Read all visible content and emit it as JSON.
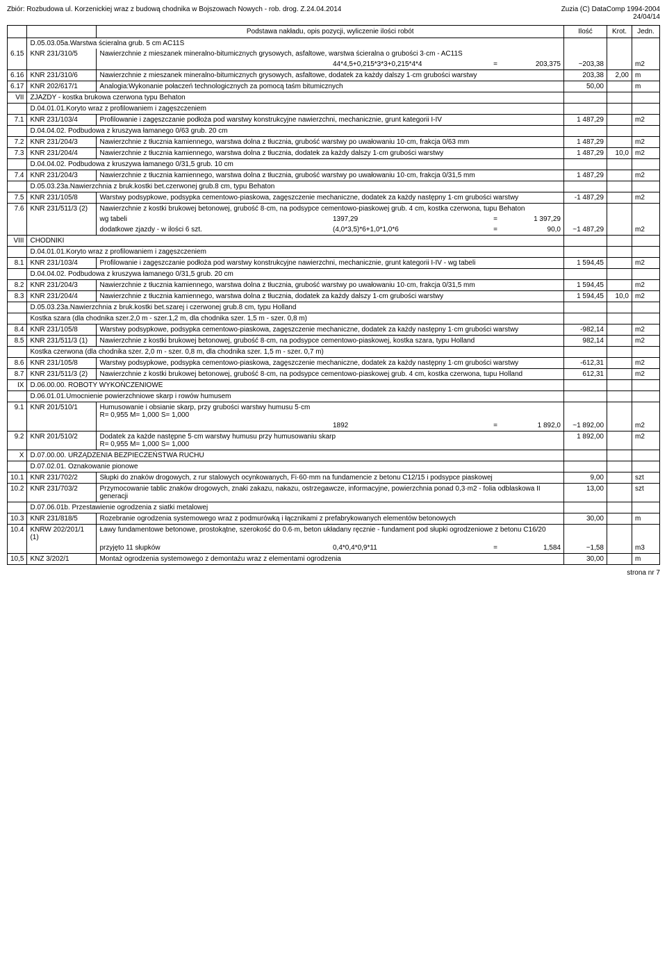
{
  "header": {
    "left": "Zbiór: Rozbudowa ul. Korzenickiej wraz z budową chodnika  w Bojszowach Nowych - rob. drog. Z.24.04.2014",
    "right1": "Zuzia (C) DataComp 1994-2004",
    "right2": "24/04/14"
  },
  "columns": {
    "desc": "Podstawa nakładu, opis pozycji, wyliczenie ilości robót",
    "ilosc": "Ilość",
    "krot": "Krot.",
    "jedn": "Jedn."
  },
  "rows": [
    {
      "type": "sect",
      "lp": "",
      "knr": "",
      "desc": "D.05.03.05a.Warstwa ścieralna grub. 5 cm AC11S"
    },
    {
      "type": "item",
      "lp": "6.15",
      "knr": "KNR 231/310/5",
      "desc": "Nawierzchnie z mieszanek mineralno-bitumicznych grysowych, asfaltowe, warstwa ścieralna o grubości 3·cm - AC11S"
    },
    {
      "type": "calc",
      "label": "",
      "expr": "44*4,5+0,215*3*3+0,215*4*4",
      "eq": "=",
      "val": "203,375",
      "ilosc": "~203,38",
      "krot": "",
      "jedn": "m2",
      "border": true
    },
    {
      "type": "item",
      "lp": "6.16",
      "knr": "KNR 231/310/6",
      "desc": "Nawierzchnie z mieszanek mineralno-bitumicznych grysowych, asfaltowe, dodatek za każdy dalszy 1·cm grubości warstwy",
      "ilosc": "203,38",
      "krot": "2,00",
      "jedn": "m",
      "border": true
    },
    {
      "type": "item",
      "lp": "6.17",
      "knr": "KNR 202/617/1",
      "desc": "Analogia:Wykonanie połaczeń technologicznych za pomocą taśm bitumicznych",
      "ilosc": "50,00",
      "krot": "",
      "jedn": "m",
      "border": true
    },
    {
      "type": "chap",
      "lp": "VII",
      "desc": "ZJAZDY - kostka brukowa czerwona typu Behaton",
      "border": true
    },
    {
      "type": "sect",
      "desc": "D.04.01.01.Koryto wraz z profilowaniem i zagęszczeniem",
      "border": true
    },
    {
      "type": "item",
      "lp": "7.1",
      "knr": "KNR 231/103/4",
      "desc": "Profilowanie i zagęszczanie podłoża pod warstwy konstrukcyjne nawierzchni, mechanicznie, grunt kategorii I-IV",
      "ilosc": "1 487,29",
      "krot": "",
      "jedn": "m2",
      "border": true
    },
    {
      "type": "sect",
      "desc": "D.04.04.02. Podbudowa z kruszywa łamanego 0/63 grub. 20 cm",
      "border": true
    },
    {
      "type": "item",
      "lp": "7.2",
      "knr": "KNR 231/204/3",
      "desc": "Nawierzchnie z tłucznia kamiennego, warstwa dolna z tłucznia, grubość warstwy po uwałowaniu 10·cm, frakcja 0/63 mm",
      "ilosc": "1 487,29",
      "krot": "",
      "jedn": "m2",
      "border": true
    },
    {
      "type": "item",
      "lp": "7.3",
      "knr": "KNR 231/204/4",
      "desc": "Nawierzchnie z tłucznia kamiennego, warstwa dolna z tłucznia, dodatek za każdy dalszy 1·cm grubości warstwy",
      "ilosc": "1 487,29",
      "krot": "10,0",
      "jedn": "m2",
      "border": true
    },
    {
      "type": "sect",
      "desc": "D.04.04.02. Podbudowa z kruszywa łamanego 0/31,5 grub. 10 cm",
      "border": true
    },
    {
      "type": "item",
      "lp": "7.4",
      "knr": "KNR 231/204/3",
      "desc": "Nawierzchnie z tłucznia kamiennego, warstwa dolna z tłucznia, grubość warstwy po uwałowaniu 10·cm, frakcja 0/31,5 mm",
      "ilosc": "1 487,29",
      "krot": "",
      "jedn": "m2",
      "border": true
    },
    {
      "type": "sect",
      "desc": "D.05.03.23a.Nawierzchnia z bruk.kostki bet.czerwonej grub.8 cm, typu Behaton",
      "border": true
    },
    {
      "type": "item",
      "lp": "7.5",
      "knr": "KNR 231/105/8",
      "desc": "Warstwy podsypkowe, podsypka cementowo-piaskowa, zagęszczenie mechaniczne, dodatek za każdy następny 1·cm grubości warstwy",
      "ilosc": "-1 487,29",
      "krot": "",
      "jedn": "m2",
      "border": true
    },
    {
      "type": "item",
      "lp": "7.6",
      "knr": "KNR 231/511/3 (2)",
      "desc": "Nawierzchnie z kostki brukowej betonowej, grubość 8·cm, na podsypce cementowo-piaskowej grub. 4 cm, kostka czerwona, tupu Behaton"
    },
    {
      "type": "calc",
      "label": "wg tabeli",
      "expr": "1397,29",
      "eq": "=",
      "val": "1 397,29",
      "ilosc": "",
      "krot": "",
      "jedn": ""
    },
    {
      "type": "calc",
      "label": "dodatkowe zjazdy - w ilości 6 szt.",
      "expr": "(4,0*3,5)*6+1,0*1,0*6",
      "eq": "=",
      "val": "90,0",
      "ilosc": "~1 487,29",
      "krot": "",
      "jedn": "m2",
      "border": true
    },
    {
      "type": "chap",
      "lp": "VIII",
      "desc": "CHODNIKI",
      "border": true
    },
    {
      "type": "sect",
      "desc": "D.04.01.01.Koryto wraz z profilowaniem i zagęszczeniem",
      "border": true
    },
    {
      "type": "item",
      "lp": "8.1",
      "knr": "KNR 231/103/4",
      "desc": "Profilowanie i zagęszczanie podłoża pod warstwy konstrukcyjne nawierzchni, mechanicznie, grunt kategorii I-IV - wg tabeli",
      "ilosc": "1 594,45",
      "krot": "",
      "jedn": "m2",
      "border": true
    },
    {
      "type": "sect",
      "desc": "D.04.04.02. Podbudowa z kruszywa łamanego 0/31,5 grub. 20 cm",
      "border": true
    },
    {
      "type": "item",
      "lp": "8.2",
      "knr": "KNR 231/204/3",
      "desc": "Nawierzchnie z tłucznia kamiennego, warstwa dolna z tłucznia, grubość warstwy po uwałowaniu 10·cm, frakcja 0/31,5 mm",
      "ilosc": "1 594,45",
      "krot": "",
      "jedn": "m2",
      "border": true
    },
    {
      "type": "item",
      "lp": "8.3",
      "knr": "KNR 231/204/4",
      "desc": "Nawierzchnie z tłucznia kamiennego, warstwa dolna z tłucznia, dodatek za każdy dalszy 1·cm grubości warstwy",
      "ilosc": "1 594,45",
      "krot": "10,0",
      "jedn": "m2",
      "border": true
    },
    {
      "type": "sect",
      "desc": "D.05.03.23a.Nawierzchnia z bruk.kostki bet.szarej i czerwonej  grub.8 cm, typu Holland",
      "border": true
    },
    {
      "type": "sect",
      "desc": "Kostka szara (dla chodnika szer.2,0 m  - szer.1,2 m, dla chodnika szer. 1,5 m  - szer. 0,8 m)",
      "border": true
    },
    {
      "type": "item",
      "lp": "8.4",
      "knr": "KNR 231/105/8",
      "desc": "Warstwy podsypkowe, podsypka cementowo-piaskowa, zagęszczenie mechaniczne, dodatek za każdy następny 1·cm grubości warstwy",
      "ilosc": "-982,14",
      "krot": "",
      "jedn": "m2",
      "border": true
    },
    {
      "type": "item",
      "lp": "8.5",
      "knr": "KNR 231/511/3 (1)",
      "desc": "Nawierzchnie z kostki brukowej betonowej, grubość 8·cm, na podsypce cementowo-piaskowej, kostka szara, typu Holland",
      "ilosc": "982,14",
      "krot": "",
      "jedn": "m2",
      "border": true
    },
    {
      "type": "sect",
      "desc": "Kostka czerwona (dla chodnika szer. 2,0 m - szer. 0,8 m, dla chodnika szer. 1,5 m - szer. 0,7 m)",
      "border": true
    },
    {
      "type": "item",
      "lp": "8.6",
      "knr": "KNR 231/105/8",
      "desc": "Warstwy podsypkowe, podsypka cementowo-piaskowa, zagęszczenie mechaniczne, dodatek za każdy następny 1·cm grubości warstwy",
      "ilosc": "-612,31",
      "krot": "",
      "jedn": "m2",
      "border": true
    },
    {
      "type": "item",
      "lp": "8.7",
      "knr": "KNR 231/511/3 (2)",
      "desc": "Nawierzchnie z kostki brukowej betonowej, grubość 8·cm, na podsypce cementowo-piaskowej grub. 4 cm, kostka czerwona, tupu Holland",
      "ilosc": "612,31",
      "krot": "",
      "jedn": "m2",
      "border": true
    },
    {
      "type": "chap",
      "lp": "IX",
      "desc": "D.06.00.00. ROBOTY WYKOŃCZENIOWE",
      "border": true
    },
    {
      "type": "sect",
      "desc": "D.06.01.01.Umocnienie powierzchniowe skarp i rowów humusem",
      "border": true
    },
    {
      "type": "item",
      "lp": "9.1",
      "knr": "KNR 201/510/1",
      "desc": "Humusowanie i obsianie skarp, przy grubości warstwy humusu 5·cm\nR= 0,955  M= 1,000  S= 1,000"
    },
    {
      "type": "calc",
      "label": "",
      "expr": "1892",
      "eq": "=",
      "val": "1 892,0",
      "ilosc": "~1 892,00",
      "krot": "",
      "jedn": "m2",
      "border": true
    },
    {
      "type": "item",
      "lp": "9.2",
      "knr": "KNR 201/510/2",
      "desc": "Dodatek za każde następne 5·cm warstwy humusu przy humusowaniu skarp\nR= 0,955  M= 1,000  S= 1,000",
      "ilosc": "1 892,00",
      "krot": "",
      "jedn": "m2",
      "border": true
    },
    {
      "type": "chap",
      "lp": "X",
      "desc": "D.07.00.00. URZĄDZENIA BEZPIECZEŃSTWA RUCHU",
      "border": true
    },
    {
      "type": "sect",
      "desc": "D.07.02.01. Oznakowanie pionowe",
      "border": true
    },
    {
      "type": "item",
      "lp": "10.1",
      "knr": "KNR 231/702/2",
      "desc": "Słupki do znaków drogowych, z rur stalowych ocynkowanych, Fi·60·mm na fundamencie z betonu C12/15 i podsypce piaskowej",
      "ilosc": "9,00",
      "krot": "",
      "jedn": "szt",
      "border": true
    },
    {
      "type": "item",
      "lp": "10.2",
      "knr": "KNR 231/703/2",
      "desc": "Przymocowanie tablic znaków drogowych, znaki zakazu, nakazu, ostrzegawcze, informacyjne, powierzchnia ponad 0,3·m2 - folia odblaskowa II generacji",
      "ilosc": "13,00",
      "krot": "",
      "jedn": "szt",
      "border": true
    },
    {
      "type": "sect",
      "desc": "D.07.06.01b. Przestawienie ogrodzenia z siatki metalowej",
      "border": true
    },
    {
      "type": "item",
      "lp": "10.3",
      "knr": "KNR 231/818/5",
      "desc": "Rozebranie ogrodzenia systemowego wraz z podmurówką i łącznikami z prefabrykowanych elementów betonowych",
      "ilosc": "30,00",
      "krot": "",
      "jedn": "m",
      "border": true
    },
    {
      "type": "item",
      "lp": "10.4",
      "knr": "KNRW 202/201/1 (1)",
      "desc": "Ławy fundamentowe betonowe, prostokątne, szerokość do 0.6·m, beton układany ręcznie - fundament pod słupki ogrodzeniowe z betonu C16/20"
    },
    {
      "type": "calc",
      "label": "przyjęto 11 słupków",
      "expr": "0,4*0,4*0,9*11",
      "eq": "=",
      "val": "1,584",
      "ilosc": "~1,58",
      "krot": "",
      "jedn": "m3",
      "border": true
    },
    {
      "type": "item",
      "lp": "10,5",
      "knr": "KNZ 3/202/1",
      "desc": "Montaż ogrodzenia systemowego z demontażu wraz z elementami ogrodzenia",
      "ilosc": "30,00",
      "krot": "",
      "jedn": "m",
      "border": true
    }
  ],
  "footer": "strona nr    7"
}
